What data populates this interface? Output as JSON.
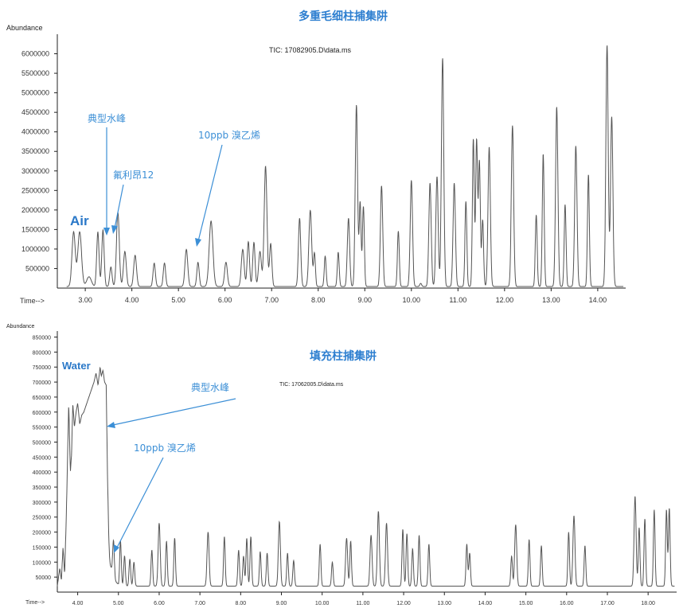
{
  "chart_data": [
    {
      "type": "line",
      "title": "多重毛细柱捕集阱",
      "ylabel": "Abundance",
      "xlabel": "Time-->",
      "file_label": "TIC: 17082905.D\\data.ms",
      "xlim": [
        2.4,
        14.6
      ],
      "ylim": [
        0,
        6500000
      ],
      "x_ticks": [
        3.0,
        4.0,
        5.0,
        6.0,
        7.0,
        8.0,
        9.0,
        10.0,
        11.0,
        12.0,
        13.0,
        14.0
      ],
      "x_tick_labels": [
        "3.00",
        "4.00",
        "5.00",
        "6.00",
        "7.00",
        "8.00",
        "9.00",
        "10.00",
        "11.00",
        "12.00",
        "13.00",
        "14.00"
      ],
      "y_ticks": [
        500000,
        1000000,
        1500000,
        2000000,
        2500000,
        3000000,
        3500000,
        4000000,
        4500000,
        5000000,
        5500000,
        6000000
      ],
      "y_tick_labels": [
        "500000",
        "1000000",
        "1500000",
        "2000000",
        "2500000",
        "3000000",
        "3500000",
        "4000000",
        "4500000",
        "5000000",
        "5500000",
        "6000000"
      ],
      "baseline": 40000,
      "peaks": [
        [
          2.75,
          1400000,
          0.035
        ],
        [
          2.88,
          1400000,
          0.04
        ],
        [
          3.08,
          250000,
          0.05
        ],
        [
          3.27,
          1400000,
          0.025
        ],
        [
          3.38,
          1450000,
          0.025
        ],
        [
          3.55,
          500000,
          0.025
        ],
        [
          3.7,
          1900000,
          0.03
        ],
        [
          3.85,
          900000,
          0.03
        ],
        [
          4.07,
          800000,
          0.03
        ],
        [
          4.48,
          600000,
          0.025
        ],
        [
          4.7,
          600000,
          0.025
        ],
        [
          5.17,
          950000,
          0.03
        ],
        [
          5.42,
          620000,
          0.025
        ],
        [
          5.7,
          1680000,
          0.04
        ],
        [
          6.02,
          620000,
          0.03
        ],
        [
          6.38,
          950000,
          0.03
        ],
        [
          6.5,
          1150000,
          0.025
        ],
        [
          6.62,
          1130000,
          0.025
        ],
        [
          6.75,
          900000,
          0.03
        ],
        [
          6.87,
          3080000,
          0.03
        ],
        [
          6.98,
          1100000,
          0.025
        ],
        [
          7.6,
          1750000,
          0.025
        ],
        [
          7.83,
          1950000,
          0.03
        ],
        [
          7.92,
          850000,
          0.02
        ],
        [
          8.15,
          780000,
          0.02
        ],
        [
          8.43,
          880000,
          0.02
        ],
        [
          8.65,
          1750000,
          0.025
        ],
        [
          8.82,
          4650000,
          0.025
        ],
        [
          8.9,
          2150000,
          0.02
        ],
        [
          8.97,
          2050000,
          0.02
        ],
        [
          9.36,
          2580000,
          0.025
        ],
        [
          9.72,
          1420000,
          0.02
        ],
        [
          10.0,
          2720000,
          0.025
        ],
        [
          10.2,
          80000,
          0.02
        ],
        [
          10.4,
          2650000,
          0.025
        ],
        [
          10.55,
          2820000,
          0.025
        ],
        [
          10.67,
          5850000,
          0.025
        ],
        [
          10.92,
          2650000,
          0.025
        ],
        [
          11.17,
          2180000,
          0.02
        ],
        [
          11.33,
          3780000,
          0.02
        ],
        [
          11.4,
          3750000,
          0.02
        ],
        [
          11.46,
          3200000,
          0.02
        ],
        [
          11.53,
          1700000,
          0.02
        ],
        [
          11.67,
          3580000,
          0.025
        ],
        [
          12.17,
          4120000,
          0.025
        ],
        [
          12.68,
          1830000,
          0.02
        ],
        [
          12.83,
          3400000,
          0.02
        ],
        [
          13.12,
          4600000,
          0.025
        ],
        [
          13.3,
          2100000,
          0.02
        ],
        [
          13.53,
          3600000,
          0.025
        ],
        [
          13.8,
          2870000,
          0.02
        ],
        [
          14.2,
          6180000,
          0.025
        ],
        [
          14.3,
          4350000,
          0.025
        ]
      ],
      "annotations": [
        {
          "text": "典型水峰",
          "x": 3.27
        },
        {
          "text": "氟利昂12",
          "x": 3.38
        },
        {
          "text": "10ppb 溴乙烯",
          "x": 5.17
        }
      ],
      "peak_labels": [
        {
          "text": "Air",
          "x": 2.8
        }
      ]
    },
    {
      "type": "line",
      "title": "填充柱捕集阱",
      "ylabel": "Abundance",
      "xlabel": "Time-->",
      "file_label": "TIC: 17062005.D\\data.ms",
      "xlim": [
        3.5,
        18.7
      ],
      "ylim": [
        0,
        870000
      ],
      "x_ticks": [
        4.0,
        5.0,
        6.0,
        7.0,
        8.0,
        9.0,
        10.0,
        11.0,
        12.0,
        13.0,
        14.0,
        15.0,
        16.0,
        17.0,
        18.0
      ],
      "x_tick_labels": [
        "4.00",
        "5.00",
        "6.00",
        "7.00",
        "8.00",
        "9.00",
        "10.00",
        "11.00",
        "12.00",
        "13.00",
        "14.00",
        "15.00",
        "16.00",
        "17.00",
        "18.00"
      ],
      "y_ticks": [
        50000,
        100000,
        150000,
        200000,
        250000,
        300000,
        350000,
        400000,
        450000,
        500000,
        550000,
        600000,
        650000,
        700000,
        750000,
        800000,
        850000
      ],
      "y_tick_labels": [
        "50000",
        "100000",
        "150000",
        "200000",
        "250000",
        "300000",
        "350000",
        "400000",
        "450000",
        "500000",
        "550000",
        "600000",
        "650000",
        "700000",
        "750000",
        "800000",
        "850000"
      ],
      "baseline": 20000,
      "water_region": {
        "x": [
          3.5,
          3.56,
          3.6,
          3.64,
          3.68,
          3.72,
          3.78,
          3.82,
          3.85,
          3.88,
          3.92,
          3.96,
          4.0,
          4.05,
          4.1,
          4.15,
          4.2,
          4.3,
          4.4,
          4.45,
          4.5,
          4.55,
          4.58,
          4.62,
          4.66,
          4.7,
          4.73,
          4.76,
          4.78,
          4.8,
          4.85,
          4.9,
          5.0
        ],
        "y": [
          20000,
          80000,
          40000,
          150000,
          60000,
          250000,
          630000,
          400000,
          460000,
          630000,
          550000,
          600000,
          630000,
          560000,
          590000,
          600000,
          620000,
          660000,
          700000,
          730000,
          690000,
          750000,
          720000,
          740000,
          700000,
          690000,
          400000,
          200000,
          120000,
          90000,
          70000,
          40000,
          25000
        ]
      },
      "peaks": [
        [
          4.88,
          120000,
          0.02
        ],
        [
          5.05,
          150000,
          0.02
        ],
        [
          5.15,
          100000,
          0.02
        ],
        [
          5.28,
          90000,
          0.02
        ],
        [
          5.38,
          80000,
          0.02
        ],
        [
          5.82,
          120000,
          0.02
        ],
        [
          6.0,
          210000,
          0.025
        ],
        [
          6.18,
          150000,
          0.02
        ],
        [
          6.38,
          160000,
          0.02
        ],
        [
          7.2,
          180000,
          0.025
        ],
        [
          7.6,
          165000,
          0.02
        ],
        [
          7.95,
          120000,
          0.02
        ],
        [
          8.07,
          100000,
          0.02
        ],
        [
          8.15,
          160000,
          0.02
        ],
        [
          8.25,
          165000,
          0.02
        ],
        [
          8.48,
          115000,
          0.02
        ],
        [
          8.65,
          110000,
          0.02
        ],
        [
          8.95,
          215000,
          0.025
        ],
        [
          9.15,
          110000,
          0.02
        ],
        [
          9.3,
          85000,
          0.02
        ],
        [
          9.95,
          140000,
          0.02
        ],
        [
          10.25,
          80000,
          0.02
        ],
        [
          10.6,
          160000,
          0.025
        ],
        [
          10.7,
          150000,
          0.02
        ],
        [
          11.2,
          170000,
          0.025
        ],
        [
          11.38,
          250000,
          0.025
        ],
        [
          11.58,
          210000,
          0.025
        ],
        [
          11.98,
          190000,
          0.02
        ],
        [
          12.08,
          175000,
          0.02
        ],
        [
          12.22,
          125000,
          0.02
        ],
        [
          12.38,
          170000,
          0.02
        ],
        [
          12.62,
          140000,
          0.02
        ],
        [
          13.55,
          140000,
          0.02
        ],
        [
          13.62,
          110000,
          0.02
        ],
        [
          14.65,
          100000,
          0.02
        ],
        [
          14.75,
          205000,
          0.025
        ],
        [
          15.08,
          155000,
          0.02
        ],
        [
          15.38,
          135000,
          0.02
        ],
        [
          16.05,
          180000,
          0.02
        ],
        [
          16.18,
          235000,
          0.025
        ],
        [
          16.45,
          135000,
          0.02
        ],
        [
          17.68,
          300000,
          0.025
        ],
        [
          17.78,
          195000,
          0.02
        ],
        [
          17.92,
          225000,
          0.02
        ],
        [
          18.15,
          255000,
          0.02
        ],
        [
          18.45,
          255000,
          0.02
        ],
        [
          18.52,
          260000,
          0.02
        ]
      ],
      "annotations": [
        {
          "text": "典型水峰",
          "x": 4.78
        },
        {
          "text": "10ppb 溴乙烯",
          "x": 4.88
        }
      ],
      "peak_labels": [
        {
          "text": "Water",
          "x": 4.1
        }
      ]
    }
  ]
}
